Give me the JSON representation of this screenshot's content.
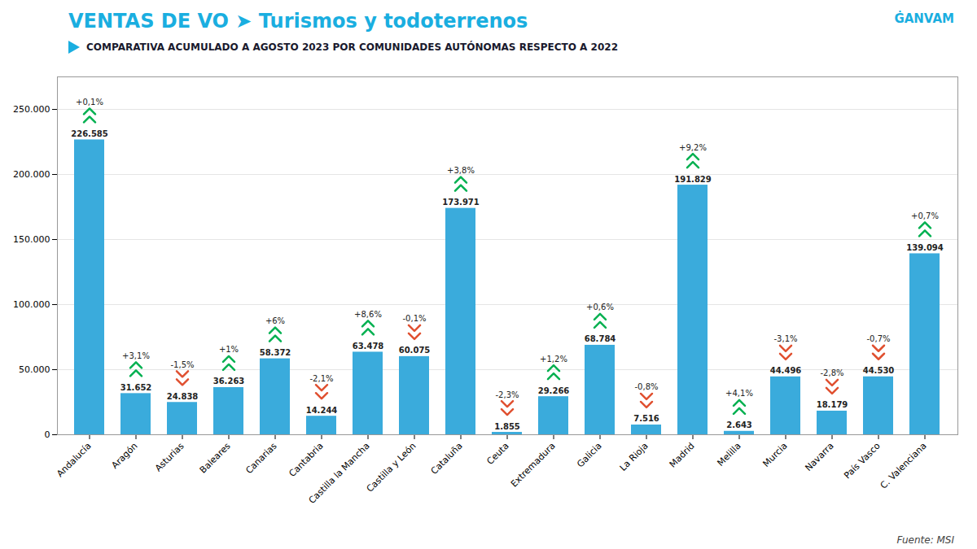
{
  "chart_data": {
    "type": "bar",
    "title": "VENTAS DE VO ➤ Turismos y todoterrenos",
    "subtitle": "COMPARATIVA ACUMULADO A AGOSTO 2023 POR COMUNIDADES AUTÓNOMAS RESPECTO A 2022",
    "categories": [
      "Andalucía",
      "Aragón",
      "Asturias",
      "Baleares",
      "Canarias",
      "Cantabria",
      "Castilla la Mancha",
      "Castilla y León",
      "Cataluña",
      "Ceuta",
      "Extremadura",
      "Galicia",
      "La Rioja",
      "Madrid",
      "Melilla",
      "Murcia",
      "Navarra",
      "País Vasco",
      "C. Valenciana"
    ],
    "values": [
      226585,
      31652,
      24838,
      36263,
      58372,
      14244,
      63478,
      60075,
      173971,
      1855,
      29266,
      68784,
      7516,
      191829,
      2643,
      44496,
      18179,
      44530,
      139094
    ],
    "value_labels": [
      "226.585",
      "31.652",
      "24.838",
      "36.263",
      "58.372",
      "14.244",
      "63.478",
      "60.075",
      "173.971",
      "1.855",
      "29.266",
      "68.784",
      "7.516",
      "191.829",
      "2.643",
      "44.496",
      "18.179",
      "44.530",
      "139.094"
    ],
    "data_labels": true,
    "color": "#3aabdc",
    "pct_changes": {
      "values": [
        0.1,
        3.1,
        -1.5,
        1.0,
        6.0,
        -2.1,
        8.6,
        -0.1,
        3.8,
        -2.3,
        1.2,
        0.6,
        -0.8,
        9.2,
        4.1,
        -3.1,
        -2.8,
        -0.7,
        0.7
      ],
      "value_labels": [
        "+0,1%",
        "+3,1%",
        "-1,5%",
        "+1%",
        "+6%",
        "-2,1%",
        "+8,6%",
        "-0,1%",
        "+3,8%",
        "-2,3%",
        "+1,2%",
        "+0,6%",
        "-0,8%",
        "+9,2%",
        "+4,1%",
        "-3,1%",
        "-2,8%",
        "-0,7%",
        "+0,7%"
      ],
      "colors": [
        "#00b050",
        "#00b050",
        "#e05030",
        "#00b050",
        "#00b050",
        "#e05030",
        "#00b050",
        "#e05030",
        "#00b050",
        "#e05030",
        "#00b050",
        "#00b050",
        "#e05030",
        "#00b050",
        "#00b050",
        "#e05030",
        "#e05030",
        "#e05030",
        "#00b050"
      ]
    },
    "ylim": [
      0,
      275000
    ],
    "yticks": [
      0,
      {
        "value": 50000,
        "label": "50.000"
      },
      {
        "value": 100000,
        "label": "100.000"
      },
      {
        "value": 150000,
        "label": "150.000"
      },
      {
        "value": 200000,
        "label": "200.000"
      },
      {
        "value": 250000,
        "label": "250.000"
      }
    ],
    "grid": true,
    "annotations": [
      "ĠANVAM",
      "Fuente: MSI"
    ]
  }
}
